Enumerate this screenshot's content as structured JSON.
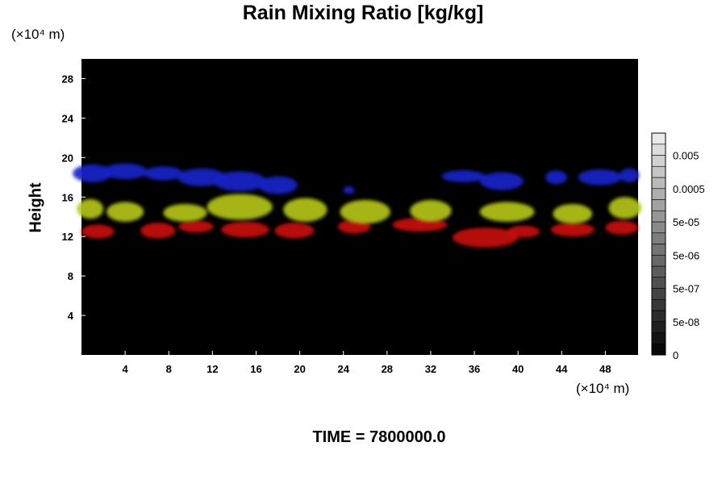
{
  "chart_data": {
    "type": "heatmap",
    "title": "Rain Mixing Ratio [kg/kg]",
    "ylabel": "Height",
    "y_unit": "(×10⁴ m)",
    "x_unit": "(×10⁴ m)",
    "footer": "TIME = 7800000.0",
    "xlim": [
      0,
      51
    ],
    "ylim": [
      0,
      30
    ],
    "x_ticks": [
      "4",
      "8",
      "12",
      "16",
      "20",
      "24",
      "28",
      "32",
      "36",
      "40",
      "44",
      "48"
    ],
    "y_ticks": [
      "4",
      "8",
      "12",
      "16",
      "20",
      "24",
      "28"
    ],
    "colorbar": {
      "labels": [
        "0",
        "5e-08",
        "5e-07",
        "5e-06",
        "5e-05",
        "0.0005",
        "0.005"
      ],
      "level_count": 20
    },
    "bands": [
      {
        "color": "#1a22c8",
        "blobs": [
          {
            "x": 1,
            "y": 18.4,
            "rx": 1.8,
            "ry": 0.9
          },
          {
            "x": 4,
            "y": 18.6,
            "rx": 2.0,
            "ry": 0.8
          },
          {
            "x": 7.5,
            "y": 18.4,
            "rx": 1.8,
            "ry": 0.7
          },
          {
            "x": 11,
            "y": 18.0,
            "rx": 2.2,
            "ry": 0.9
          },
          {
            "x": 14.5,
            "y": 17.6,
            "rx": 2.4,
            "ry": 1.0
          },
          {
            "x": 18,
            "y": 17.2,
            "rx": 1.8,
            "ry": 0.9
          },
          {
            "x": 24.5,
            "y": 16.7,
            "rx": 0.5,
            "ry": 0.4
          },
          {
            "x": 35,
            "y": 18.1,
            "rx": 2.0,
            "ry": 0.6
          },
          {
            "x": 38.5,
            "y": 17.6,
            "rx": 2.0,
            "ry": 0.9
          },
          {
            "x": 43.5,
            "y": 18.0,
            "rx": 1.0,
            "ry": 0.7
          },
          {
            "x": 47.5,
            "y": 18.0,
            "rx": 2.0,
            "ry": 0.8
          },
          {
            "x": 50.2,
            "y": 18.2,
            "rx": 0.9,
            "ry": 0.7
          }
        ]
      },
      {
        "color": "#c81010",
        "blobs": [
          {
            "x": 1.5,
            "y": 12.5,
            "rx": 1.5,
            "ry": 0.7
          },
          {
            "x": 7,
            "y": 12.6,
            "rx": 1.6,
            "ry": 0.8
          },
          {
            "x": 10.5,
            "y": 13.0,
            "rx": 1.6,
            "ry": 0.6
          },
          {
            "x": 15,
            "y": 12.7,
            "rx": 2.2,
            "ry": 0.8
          },
          {
            "x": 19.5,
            "y": 12.6,
            "rx": 1.8,
            "ry": 0.8
          },
          {
            "x": 25,
            "y": 13.0,
            "rx": 1.5,
            "ry": 0.7
          },
          {
            "x": 31,
            "y": 13.2,
            "rx": 2.5,
            "ry": 0.7
          },
          {
            "x": 37,
            "y": 11.9,
            "rx": 3.0,
            "ry": 1.0
          },
          {
            "x": 40.5,
            "y": 12.5,
            "rx": 1.5,
            "ry": 0.6
          },
          {
            "x": 45,
            "y": 12.7,
            "rx": 2.0,
            "ry": 0.7
          },
          {
            "x": 49.5,
            "y": 12.9,
            "rx": 1.5,
            "ry": 0.7
          }
        ]
      },
      {
        "color": "#b4c41a",
        "blobs": [
          {
            "x": 0.8,
            "y": 14.8,
            "rx": 1.2,
            "ry": 1.0
          },
          {
            "x": 4,
            "y": 14.5,
            "rx": 1.7,
            "ry": 1.0
          },
          {
            "x": 9.5,
            "y": 14.4,
            "rx": 2.0,
            "ry": 0.9
          },
          {
            "x": 14.5,
            "y": 15.0,
            "rx": 3.0,
            "ry": 1.3
          },
          {
            "x": 20.5,
            "y": 14.7,
            "rx": 2.0,
            "ry": 1.2
          },
          {
            "x": 26,
            "y": 14.5,
            "rx": 2.3,
            "ry": 1.2
          },
          {
            "x": 32,
            "y": 14.6,
            "rx": 1.9,
            "ry": 1.1
          },
          {
            "x": 39,
            "y": 14.5,
            "rx": 2.5,
            "ry": 1.0
          },
          {
            "x": 45,
            "y": 14.3,
            "rx": 1.8,
            "ry": 1.0
          },
          {
            "x": 49.8,
            "y": 14.9,
            "rx": 1.5,
            "ry": 1.1
          }
        ]
      }
    ]
  }
}
